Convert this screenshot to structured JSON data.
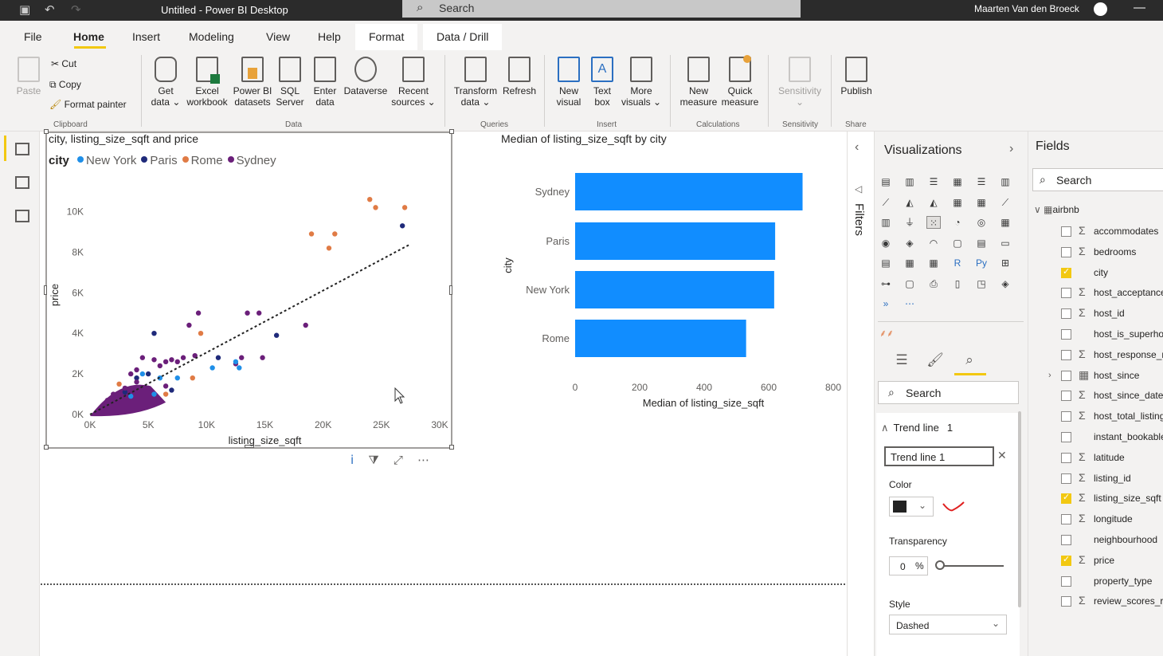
{
  "titlebar": {
    "title": "Untitled - Power BI Desktop",
    "search_label": "Search",
    "user": "Maarten Van den Broeck"
  },
  "tabs": [
    "File",
    "Home",
    "Insert",
    "Modeling",
    "View",
    "Help",
    "Format",
    "Data / Drill"
  ],
  "ribbon": {
    "clipboard": {
      "paste": "Paste",
      "cut": "Cut",
      "copy": "Copy",
      "format_painter": "Format painter",
      "group": "Clipboard"
    },
    "data": {
      "get_data": [
        "Get",
        "data ⌄"
      ],
      "excel": [
        "Excel",
        "workbook"
      ],
      "pbi": [
        "Power BI",
        "datasets"
      ],
      "sql": [
        "SQL",
        "Server"
      ],
      "enter": [
        "Enter",
        "data"
      ],
      "dataverse": "Dataverse",
      "recent": [
        "Recent",
        "sources ⌄"
      ],
      "group": "Data"
    },
    "queries": {
      "transform": [
        "Transform",
        "data ⌄"
      ],
      "refresh": "Refresh",
      "group": "Queries"
    },
    "insert": {
      "new_visual": [
        "New",
        "visual"
      ],
      "text_box": [
        "Text",
        "box"
      ],
      "more_visuals": [
        "More",
        "visuals ⌄"
      ],
      "group": "Insert"
    },
    "calculations": {
      "new_measure": [
        "New",
        "measure"
      ],
      "quick_measure": [
        "Quick",
        "measure"
      ],
      "group": "Calculations"
    },
    "sensitivity": {
      "label": "Sensitivity",
      "group": "Sensitivity"
    },
    "share": {
      "publish": "Publish",
      "group": "Share"
    }
  },
  "scatter": {
    "title": "city, listing_size_sqft and price",
    "legend_title": "city",
    "legend": [
      {
        "name": "New York",
        "color": "#1f8fe8"
      },
      {
        "name": "Paris",
        "color": "#1f2a7a"
      },
      {
        "name": "Rome",
        "color": "#e07b45"
      },
      {
        "name": "Sydney",
        "color": "#6b1f7a"
      }
    ],
    "xlabel": "listing_size_sqft",
    "ylabel": "price"
  },
  "bar": {
    "title": "Median of listing_size_sqft by city",
    "ylabel": "city",
    "xlabel": "Median of listing_size_sqft"
  },
  "chart_data": [
    {
      "type": "scatter",
      "title": "city, listing_size_sqft and price",
      "xlabel": "listing_size_sqft",
      "ylabel": "price",
      "xlim": [
        0,
        30000
      ],
      "ylim": [
        0,
        11000
      ],
      "x_ticks": [
        "0K",
        "5K",
        "10K",
        "15K",
        "20K",
        "25K",
        "30K"
      ],
      "y_ticks": [
        "0K",
        "2K",
        "4K",
        "6K",
        "8K",
        "10K"
      ],
      "trend_line": {
        "style": "dashed",
        "from": [
          0,
          0
        ],
        "to": [
          27500,
          8400
        ]
      },
      "series": [
        {
          "name": "Rome",
          "color": "#e07b45",
          "points": [
            [
              24000,
              10600
            ],
            [
              24500,
              10200
            ],
            [
              27000,
              10200
            ],
            [
              19000,
              8900
            ],
            [
              21000,
              8900
            ],
            [
              20500,
              8200
            ],
            [
              9500,
              4000
            ],
            [
              8800,
              1800
            ],
            [
              6500,
              1000
            ],
            [
              2500,
              1500
            ]
          ]
        },
        {
          "name": "Paris",
          "color": "#1f2a7a",
          "points": [
            [
              26800,
              9300
            ],
            [
              5500,
              4000
            ],
            [
              16000,
              3900
            ],
            [
              11000,
              2800
            ],
            [
              7000,
              1200
            ],
            [
              4000,
              1800
            ],
            [
              3000,
              1100
            ],
            [
              5000,
              2000
            ]
          ]
        },
        {
          "name": "Sydney",
          "color": "#6b1f7a",
          "points": [
            [
              9300,
              5000
            ],
            [
              13500,
              5000
            ],
            [
              14500,
              5000
            ],
            [
              18500,
              4400
            ],
            [
              8500,
              4400
            ],
            [
              14800,
              2800
            ],
            [
              13000,
              2800
            ],
            [
              12500,
              2500
            ],
            [
              9000,
              2900
            ],
            [
              8000,
              2800
            ],
            [
              7500,
              2600
            ],
            [
              7000,
              2700
            ],
            [
              6500,
              2600
            ],
            [
              4500,
              2800
            ],
            [
              5500,
              2700
            ],
            [
              6000,
              2400
            ],
            [
              4000,
              2200
            ],
            [
              3500,
              2000
            ],
            [
              4000,
              1600
            ],
            [
              6500,
              1400
            ],
            [
              5000,
              1300
            ],
            [
              3000,
              1300
            ],
            [
              2000,
              1000
            ],
            [
              1500,
              700
            ]
          ]
        },
        {
          "name": "New York",
          "color": "#1f8fe8",
          "points": [
            [
              12800,
              2300
            ],
            [
              10500,
              2300
            ],
            [
              12500,
              2600
            ],
            [
              4500,
              2000
            ],
            [
              6000,
              1800
            ],
            [
              7500,
              1800
            ],
            [
              5500,
              1000
            ],
            [
              3500,
              900
            ]
          ]
        }
      ]
    },
    {
      "type": "bar",
      "orientation": "horizontal",
      "title": "Median of listing_size_sqft by city",
      "categories": [
        "Sydney",
        "Paris",
        "New York",
        "Rome"
      ],
      "values": [
        705,
        620,
        617,
        530
      ],
      "xlabel": "Median of listing_size_sqft",
      "ylabel": "city",
      "xlim": [
        0,
        800
      ],
      "x_ticks": [
        "0",
        "200",
        "400",
        "600",
        "800"
      ],
      "color": "#118dff"
    }
  ],
  "filters_label": "Filters",
  "visualizations": {
    "title": "Visualizations",
    "search_placeholder": "Search",
    "trend_section": "Trend line",
    "trend_count": "1",
    "trend_name": "Trend line 1",
    "color_label": "Color",
    "trend_color": "#222222",
    "transparency_label": "Transparency",
    "transparency_value": "0",
    "transparency_unit": "%",
    "style_label": "Style",
    "style_value": "Dashed"
  },
  "fields": {
    "title": "Fields",
    "search_placeholder": "Search",
    "table": "airbnb",
    "items": [
      {
        "name": "accommodates",
        "sigma": true,
        "checked": false
      },
      {
        "name": "bedrooms",
        "sigma": true,
        "checked": false
      },
      {
        "name": "city",
        "sigma": false,
        "checked": true
      },
      {
        "name": "host_acceptance_rate",
        "sigma": true,
        "checked": false
      },
      {
        "name": "host_id",
        "sigma": true,
        "checked": false
      },
      {
        "name": "host_is_superhost",
        "sigma": false,
        "checked": false
      },
      {
        "name": "host_response_rate",
        "sigma": true,
        "checked": false
      },
      {
        "name": "host_since",
        "sigma": false,
        "checked": false,
        "expandable": true,
        "calendar": true
      },
      {
        "name": "host_since_date",
        "sigma": true,
        "checked": false
      },
      {
        "name": "host_total_listings_count",
        "sigma": true,
        "checked": false
      },
      {
        "name": "instant_bookable",
        "sigma": false,
        "checked": false
      },
      {
        "name": "latitude",
        "sigma": true,
        "checked": false
      },
      {
        "name": "listing_id",
        "sigma": true,
        "checked": false
      },
      {
        "name": "listing_size_sqft",
        "sigma": true,
        "checked": true
      },
      {
        "name": "longitude",
        "sigma": true,
        "checked": false
      },
      {
        "name": "neighbourhood",
        "sigma": false,
        "checked": false
      },
      {
        "name": "price",
        "sigma": true,
        "checked": true
      },
      {
        "name": "property_type",
        "sigma": false,
        "checked": false
      },
      {
        "name": "review_scores_rating",
        "sigma": true,
        "checked": false
      }
    ]
  }
}
